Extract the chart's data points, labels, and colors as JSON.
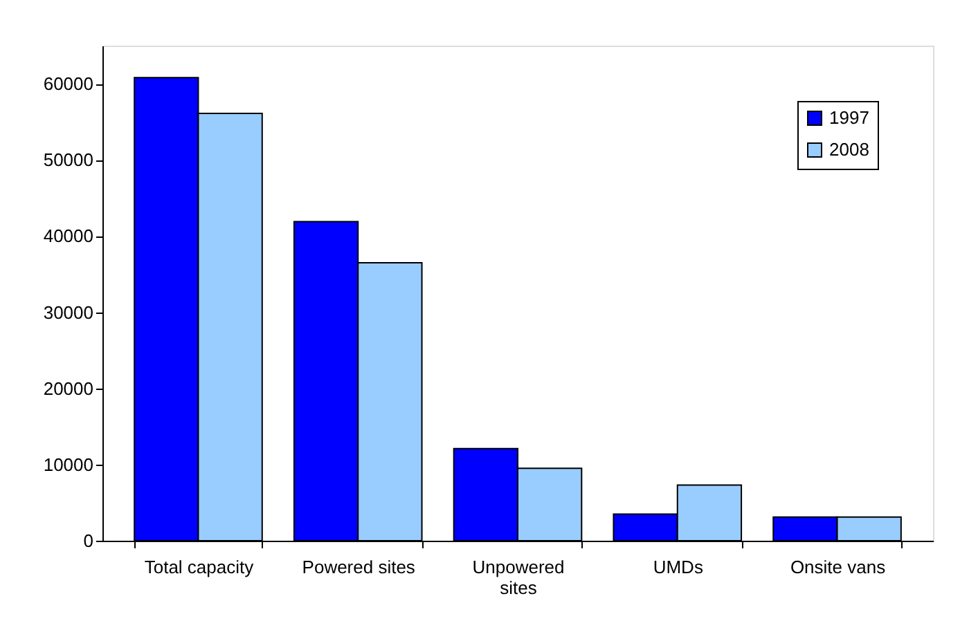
{
  "chart_data": {
    "type": "bar",
    "categories": [
      "Total capacity",
      "Powered sites",
      "Unpowered sites",
      "UMDs",
      "Onsite vans"
    ],
    "series": [
      {
        "name": "1997",
        "color": "#0000ff",
        "values": [
          60800,
          41900,
          12100,
          3500,
          3100
        ]
      },
      {
        "name": "2008",
        "color": "#99ccff",
        "values": [
          56100,
          36500,
          9500,
          7300,
          3100
        ]
      }
    ],
    "ylim": [
      0,
      65000
    ],
    "yticks": [
      0,
      10000,
      20000,
      30000,
      40000,
      50000,
      60000
    ],
    "grid": false,
    "legend": "top right"
  }
}
